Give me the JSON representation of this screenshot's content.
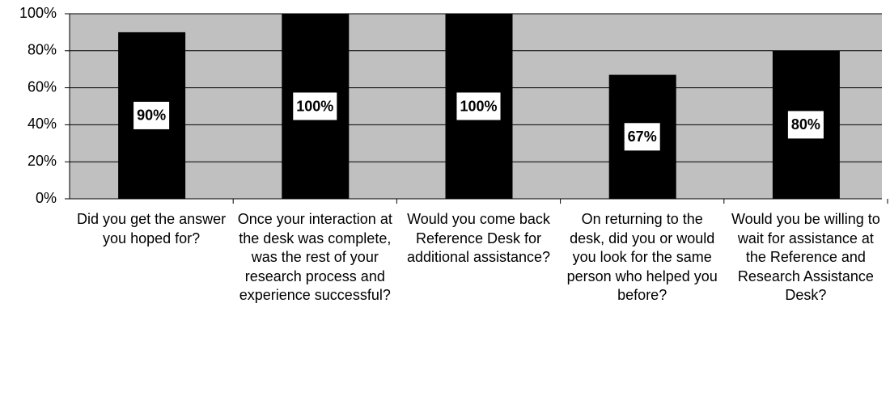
{
  "chart_data": {
    "type": "bar",
    "categories": [
      "Did you get the answer you hoped for?",
      "Once your interaction at the desk was complete, was the rest of your research process and experience successful?",
      "Would you come back Reference Desk for additional assistance?",
      "On returning to the desk, did you or would you look for the same person who helped you before?",
      "Would you be willing to wait for assistance at the Reference and Research Assistance Desk?"
    ],
    "values": [
      90,
      100,
      100,
      67,
      80
    ],
    "value_labels": [
      "90%",
      "100%",
      "100%",
      "67%",
      "80%"
    ],
    "color": "#000000",
    "ylim": [
      0,
      100
    ],
    "yticks": [
      {
        "value": 0,
        "label": "0%"
      },
      {
        "value": 20,
        "label": "20%"
      },
      {
        "value": 40,
        "label": "40%"
      },
      {
        "value": 60,
        "label": "60%"
      },
      {
        "value": 80,
        "label": "80%"
      },
      {
        "value": 100,
        "label": "100%"
      }
    ],
    "grid": true
  }
}
